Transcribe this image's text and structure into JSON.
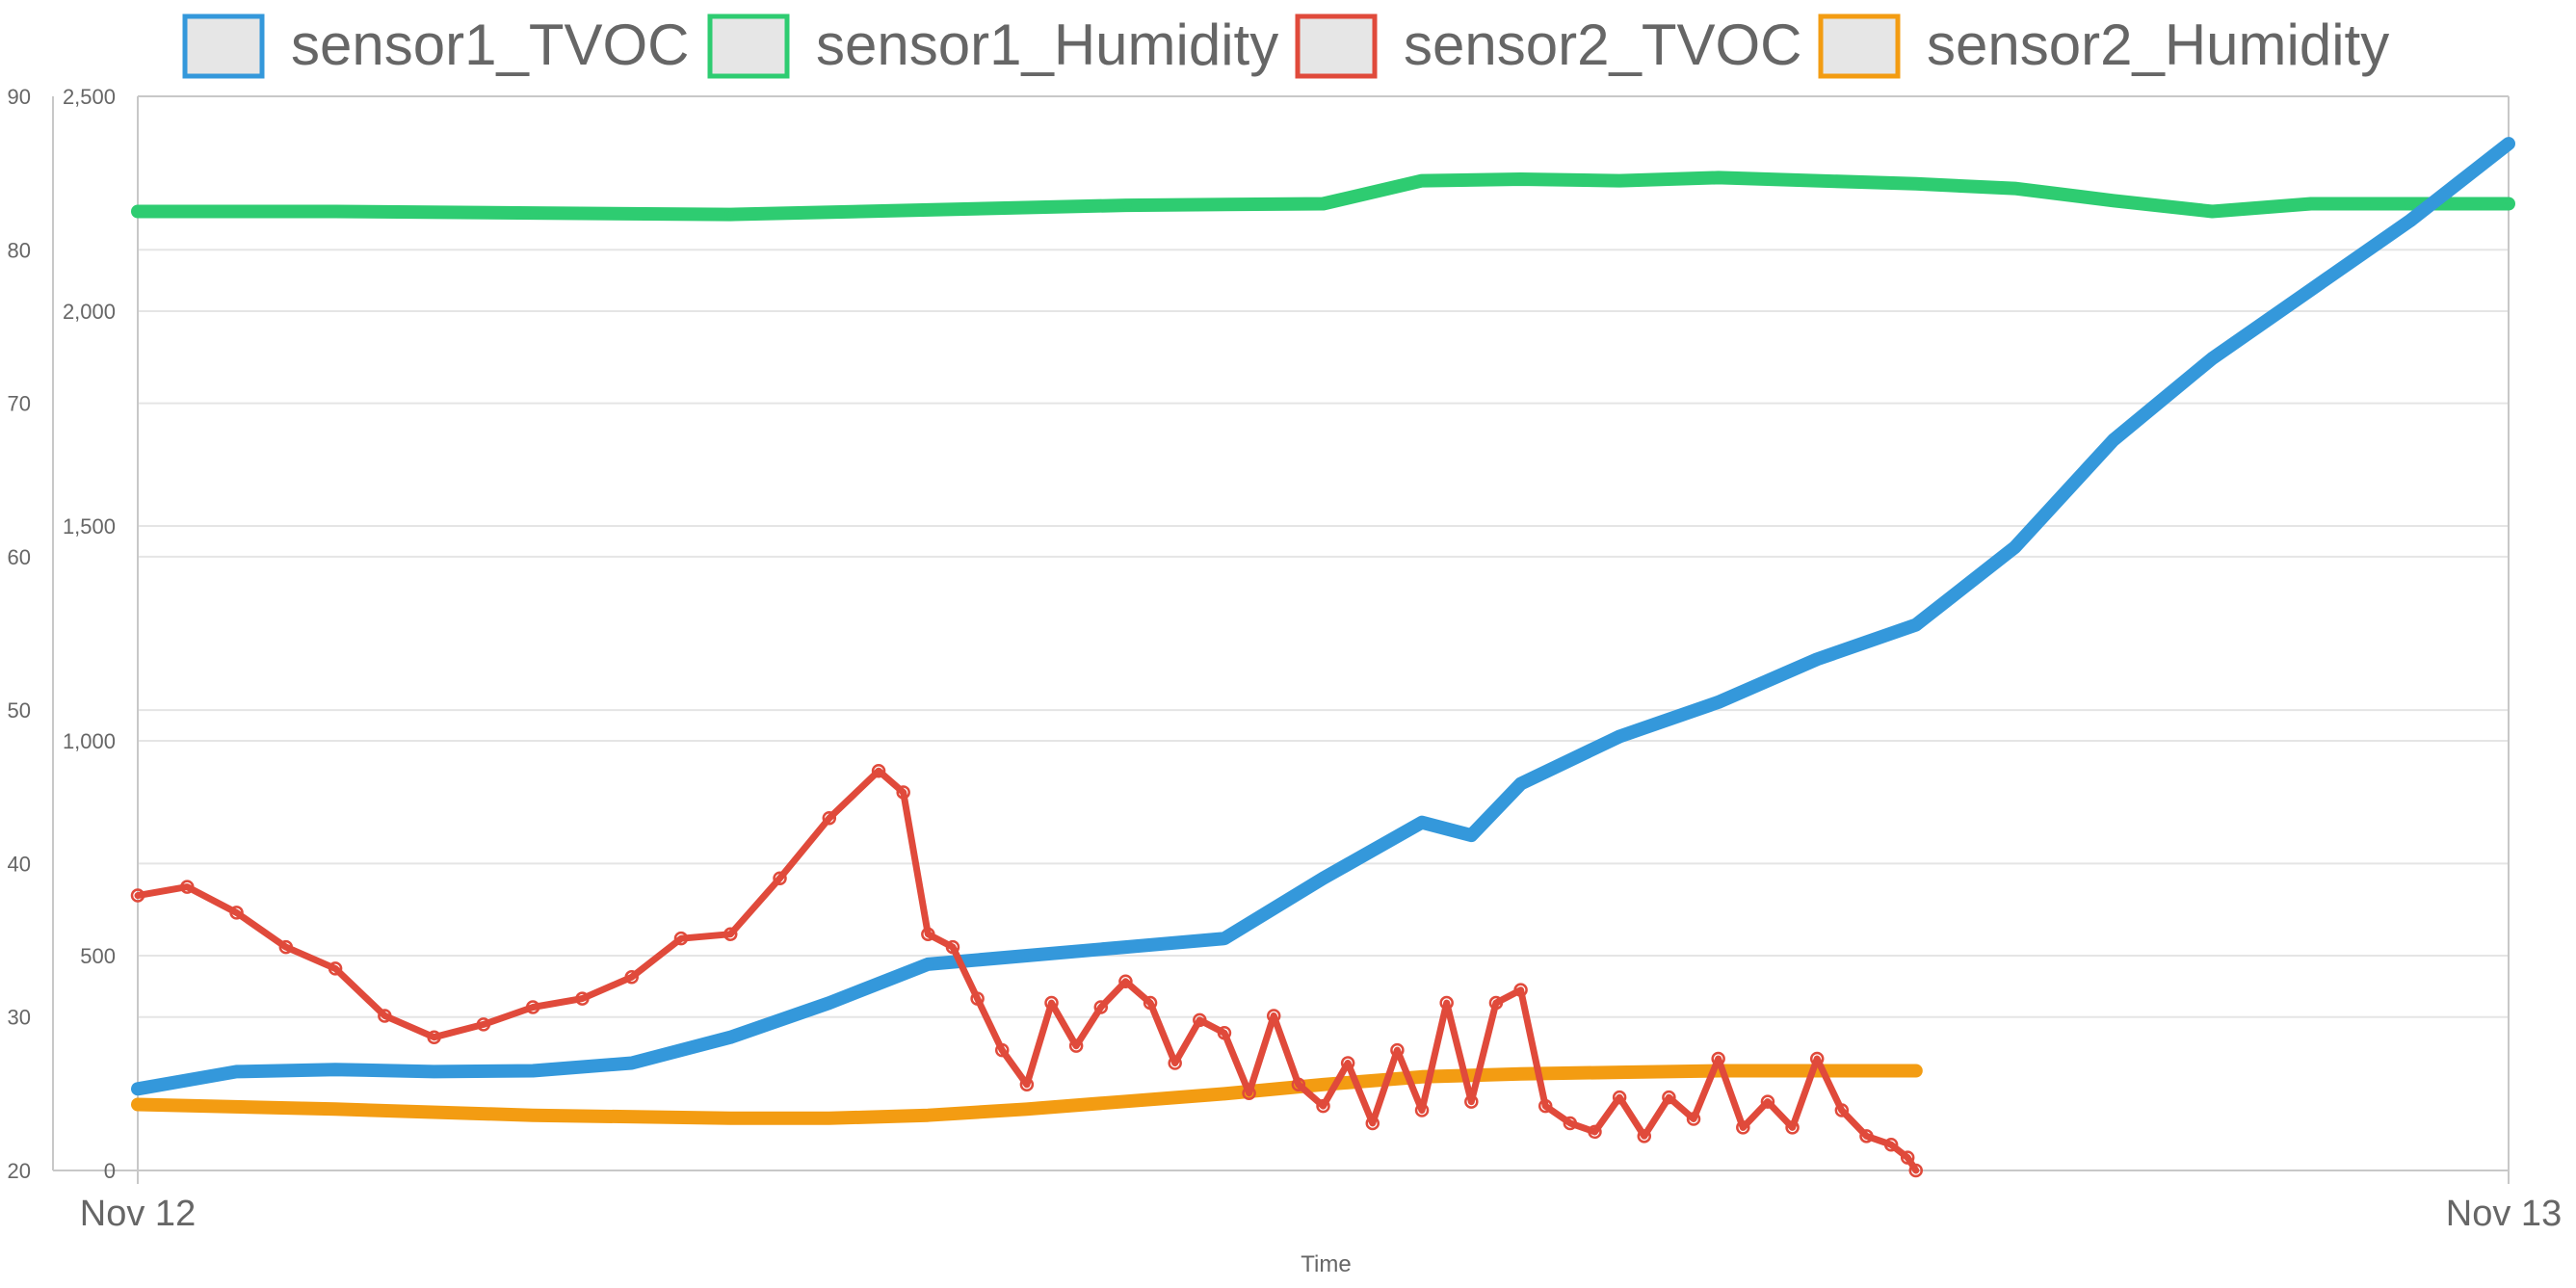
{
  "chart_data": {
    "type": "line",
    "title": "",
    "xlabel": "Time",
    "x_range": [
      "Nov 12",
      "Nov 13"
    ],
    "x_ticks": [
      "Nov 12",
      "Nov 13"
    ],
    "y_left": {
      "min": 0,
      "max": 2500,
      "ticks": [
        0,
        500,
        1000,
        1500,
        2000,
        2500
      ],
      "tick_labels": [
        "0",
        "500",
        "1,000",
        "1,500",
        "2,000",
        "2,500"
      ]
    },
    "y_left_outer": {
      "min": 20,
      "max": 90,
      "ticks": [
        20,
        30,
        40,
        50,
        60,
        70,
        80,
        90
      ],
      "tick_labels": [
        "20",
        "30",
        "40",
        "50",
        "60",
        "70",
        "80",
        "90"
      ]
    },
    "grid": true,
    "legend_position": "top",
    "series": [
      {
        "name": "sensor1_TVOC",
        "color": "#3498db",
        "axis": "tvoc",
        "x": [
          "00:00",
          "01:00",
          "02:00",
          "03:00",
          "04:00",
          "05:00",
          "06:00",
          "07:00",
          "08:00",
          "09:00",
          "10:00",
          "11:00",
          "12:00",
          "13:00",
          "13:30",
          "14:00",
          "15:00",
          "16:00",
          "17:00",
          "18:00",
          "19:00",
          "20:00",
          "21:00",
          "22:00",
          "23:00",
          "24:00"
        ],
        "values": [
          190,
          230,
          235,
          230,
          232,
          250,
          310,
          390,
          480,
          500,
          520,
          540,
          680,
          810,
          780,
          900,
          1010,
          1090,
          1190,
          1270,
          1450,
          1700,
          1890,
          2050,
          2210,
          2390
        ]
      },
      {
        "name": "sensor1_Humidity",
        "color": "#2ecc71",
        "axis": "humidity",
        "x": [
          "00:00",
          "02:00",
          "04:00",
          "06:00",
          "08:00",
          "10:00",
          "12:00",
          "13:00",
          "14:00",
          "15:00",
          "16:00",
          "17:00",
          "18:00",
          "19:00",
          "20:00",
          "21:00",
          "22:00",
          "23:00",
          "24:00"
        ],
        "values": [
          82.5,
          82.5,
          82.4,
          82.3,
          82.6,
          82.9,
          83.0,
          84.5,
          84.6,
          84.5,
          84.7,
          84.5,
          84.3,
          84.0,
          83.2,
          82.5,
          83.0,
          83.0,
          83.0
        ]
      },
      {
        "name": "sensor2_TVOC",
        "color": "#e04a3b",
        "axis": "tvoc",
        "x": [
          "00:00",
          "00:30",
          "01:00",
          "01:30",
          "02:00",
          "02:30",
          "03:00",
          "03:30",
          "04:00",
          "04:30",
          "05:00",
          "05:30",
          "06:00",
          "06:30",
          "07:00",
          "07:30",
          "07:45",
          "08:00",
          "08:15",
          "08:30",
          "08:45",
          "09:00",
          "09:15",
          "09:30",
          "09:45",
          "10:00",
          "10:15",
          "10:30",
          "10:45",
          "11:00",
          "11:15",
          "11:30",
          "11:45",
          "12:00",
          "12:15",
          "12:30",
          "12:45",
          "13:00",
          "13:15",
          "13:30",
          "13:45",
          "14:00",
          "14:15",
          "14:30",
          "14:45",
          "15:00",
          "15:15",
          "15:30",
          "15:45",
          "16:00",
          "16:15",
          "16:30",
          "16:45",
          "17:00",
          "17:15",
          "17:30",
          "17:45",
          "17:55",
          "18:00"
        ],
        "values": [
          640,
          660,
          600,
          520,
          470,
          360,
          310,
          340,
          380,
          400,
          450,
          540,
          550,
          680,
          820,
          930,
          880,
          550,
          520,
          400,
          280,
          200,
          390,
          290,
          380,
          440,
          390,
          250,
          350,
          320,
          180,
          360,
          200,
          150,
          250,
          110,
          280,
          140,
          390,
          160,
          390,
          420,
          150,
          110,
          90,
          170,
          80,
          170,
          120,
          260,
          100,
          160,
          100,
          260,
          140,
          80,
          60,
          30,
          0
        ]
      },
      {
        "name": "sensor2_Humidity",
        "color": "#f39c12",
        "axis": "humidity",
        "x": [
          "00:00",
          "02:00",
          "04:00",
          "06:00",
          "07:00",
          "08:00",
          "09:00",
          "10:00",
          "11:00",
          "12:00",
          "13:00",
          "14:00",
          "15:00",
          "16:00",
          "17:00",
          "17:30",
          "17:45",
          "18:00"
        ],
        "values": [
          24.3,
          24.0,
          23.6,
          23.4,
          23.4,
          23.6,
          24.0,
          24.5,
          25.0,
          25.6,
          26.1,
          26.3,
          26.4,
          26.5,
          26.5,
          26.5,
          26.5,
          26.5
        ]
      }
    ]
  }
}
